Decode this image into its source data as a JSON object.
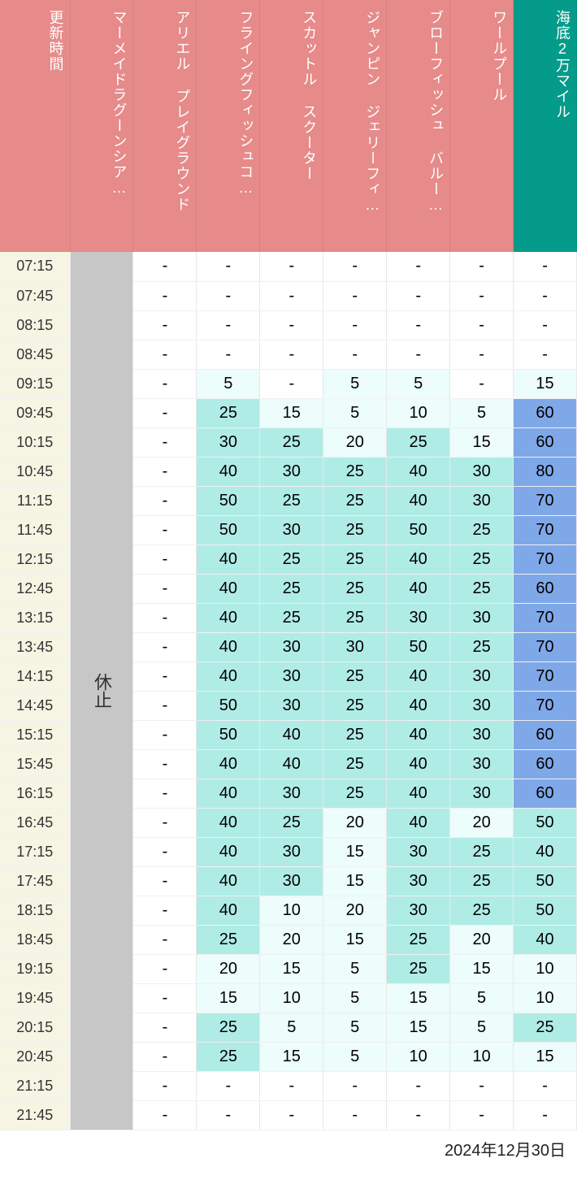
{
  "colors": {
    "head_pink": "#e68a8a",
    "head_teal": "#059b8a",
    "time_col_bg": "#f6f5e4",
    "closed_bg": "#c7c7c7",
    "tiers": {
      "none": "#ffffff",
      "t1": "#ecfdfb",
      "t2": "#b0ece6",
      "t3": "#7fa8e8",
      "alt": "#e8e8e8"
    }
  },
  "footer_date": "2024年12月30日",
  "closed_label": "休止",
  "headers": [
    {
      "key": "time",
      "label": "更新時間",
      "style": "time-head"
    },
    {
      "key": "mermaid",
      "label": "マーメイドラグーンシア…",
      "style": "col-pink"
    },
    {
      "key": "ariel",
      "label": "アリエル プレイグラウンド",
      "style": "col-pink"
    },
    {
      "key": "flying",
      "label": "フライングフィッシュコ…",
      "style": "col-pink"
    },
    {
      "key": "scuttle",
      "label": "スカットル スクーター",
      "style": "col-pink"
    },
    {
      "key": "jumpin",
      "label": "ジャンピン ジェリーフィ…",
      "style": "col-pink"
    },
    {
      "key": "blowfish",
      "label": "ブローフィッシュ バルー…",
      "style": "col-pink"
    },
    {
      "key": "whirlpool",
      "label": "ワールプール",
      "style": "col-pink"
    },
    {
      "key": "twenty",
      "label": "海底2万マイル",
      "style": "col-teal"
    }
  ],
  "times": [
    "07:15",
    "07:45",
    "08:15",
    "08:45",
    "09:15",
    "09:45",
    "10:15",
    "10:45",
    "11:15",
    "11:45",
    "12:15",
    "12:45",
    "13:15",
    "13:45",
    "14:15",
    "14:45",
    "15:15",
    "15:45",
    "16:15",
    "16:45",
    "17:15",
    "17:45",
    "18:15",
    "18:45",
    "19:15",
    "19:45",
    "20:15",
    "20:45",
    "21:15",
    "21:45"
  ],
  "data": {
    "ariel": [
      {
        "v": "-",
        "t": "none"
      },
      {
        "v": "-",
        "t": "none"
      },
      {
        "v": "-",
        "t": "none"
      },
      {
        "v": "-",
        "t": "none"
      },
      {
        "v": "-",
        "t": "none"
      },
      {
        "v": "-",
        "t": "none"
      },
      {
        "v": "-",
        "t": "none"
      },
      {
        "v": "-",
        "t": "none"
      },
      {
        "v": "-",
        "t": "none"
      },
      {
        "v": "-",
        "t": "none"
      },
      {
        "v": "-",
        "t": "none"
      },
      {
        "v": "-",
        "t": "none"
      },
      {
        "v": "-",
        "t": "none"
      },
      {
        "v": "-",
        "t": "none"
      },
      {
        "v": "-",
        "t": "none"
      },
      {
        "v": "-",
        "t": "none"
      },
      {
        "v": "-",
        "t": "none"
      },
      {
        "v": "-",
        "t": "none"
      },
      {
        "v": "-",
        "t": "none"
      },
      {
        "v": "-",
        "t": "none"
      },
      {
        "v": "-",
        "t": "none"
      },
      {
        "v": "-",
        "t": "none"
      },
      {
        "v": "-",
        "t": "none"
      },
      {
        "v": "-",
        "t": "none"
      },
      {
        "v": "-",
        "t": "none"
      },
      {
        "v": "-",
        "t": "none"
      },
      {
        "v": "-",
        "t": "none"
      },
      {
        "v": "-",
        "t": "none"
      },
      {
        "v": "-",
        "t": "none"
      },
      {
        "v": "-",
        "t": "none"
      }
    ],
    "flying": [
      {
        "v": "-",
        "t": "none"
      },
      {
        "v": "-",
        "t": "none"
      },
      {
        "v": "-",
        "t": "none"
      },
      {
        "v": "-",
        "t": "none"
      },
      {
        "v": "5",
        "t": "t1"
      },
      {
        "v": "25",
        "t": "t2"
      },
      {
        "v": "30",
        "t": "t2"
      },
      {
        "v": "40",
        "t": "t2"
      },
      {
        "v": "50",
        "t": "t2"
      },
      {
        "v": "50",
        "t": "t2"
      },
      {
        "v": "40",
        "t": "t2"
      },
      {
        "v": "40",
        "t": "t2"
      },
      {
        "v": "40",
        "t": "t2"
      },
      {
        "v": "40",
        "t": "t2"
      },
      {
        "v": "40",
        "t": "t2"
      },
      {
        "v": "50",
        "t": "t2"
      },
      {
        "v": "50",
        "t": "t2"
      },
      {
        "v": "40",
        "t": "t2"
      },
      {
        "v": "40",
        "t": "t2"
      },
      {
        "v": "40",
        "t": "t2"
      },
      {
        "v": "40",
        "t": "t2"
      },
      {
        "v": "40",
        "t": "t2"
      },
      {
        "v": "40",
        "t": "t2"
      },
      {
        "v": "25",
        "t": "t2"
      },
      {
        "v": "20",
        "t": "t1"
      },
      {
        "v": "15",
        "t": "t1"
      },
      {
        "v": "25",
        "t": "t2"
      },
      {
        "v": "25",
        "t": "t2"
      },
      {
        "v": "-",
        "t": "none"
      },
      {
        "v": "-",
        "t": "none"
      }
    ],
    "scuttle": [
      {
        "v": "-",
        "t": "none"
      },
      {
        "v": "-",
        "t": "none"
      },
      {
        "v": "-",
        "t": "none"
      },
      {
        "v": "-",
        "t": "none"
      },
      {
        "v": "-",
        "t": "none"
      },
      {
        "v": "15",
        "t": "t1"
      },
      {
        "v": "25",
        "t": "t2"
      },
      {
        "v": "30",
        "t": "t2"
      },
      {
        "v": "25",
        "t": "t2"
      },
      {
        "v": "30",
        "t": "t2"
      },
      {
        "v": "25",
        "t": "t2"
      },
      {
        "v": "25",
        "t": "t2"
      },
      {
        "v": "25",
        "t": "t2"
      },
      {
        "v": "30",
        "t": "t2"
      },
      {
        "v": "30",
        "t": "t2"
      },
      {
        "v": "30",
        "t": "t2"
      },
      {
        "v": "40",
        "t": "t2"
      },
      {
        "v": "40",
        "t": "t2"
      },
      {
        "v": "30",
        "t": "t2"
      },
      {
        "v": "25",
        "t": "t2"
      },
      {
        "v": "30",
        "t": "t2"
      },
      {
        "v": "30",
        "t": "t2"
      },
      {
        "v": "10",
        "t": "t1"
      },
      {
        "v": "20",
        "t": "t1"
      },
      {
        "v": "15",
        "t": "t1"
      },
      {
        "v": "10",
        "t": "t1"
      },
      {
        "v": "5",
        "t": "t1"
      },
      {
        "v": "15",
        "t": "t1"
      },
      {
        "v": "-",
        "t": "none"
      },
      {
        "v": "-",
        "t": "none"
      }
    ],
    "jumpin": [
      {
        "v": "-",
        "t": "none"
      },
      {
        "v": "-",
        "t": "none"
      },
      {
        "v": "-",
        "t": "none"
      },
      {
        "v": "-",
        "t": "none"
      },
      {
        "v": "5",
        "t": "t1"
      },
      {
        "v": "5",
        "t": "t1"
      },
      {
        "v": "20",
        "t": "t1"
      },
      {
        "v": "25",
        "t": "t2"
      },
      {
        "v": "25",
        "t": "t2"
      },
      {
        "v": "25",
        "t": "t2"
      },
      {
        "v": "25",
        "t": "t2"
      },
      {
        "v": "25",
        "t": "t2"
      },
      {
        "v": "25",
        "t": "t2"
      },
      {
        "v": "30",
        "t": "t2"
      },
      {
        "v": "25",
        "t": "t2"
      },
      {
        "v": "25",
        "t": "t2"
      },
      {
        "v": "25",
        "t": "t2"
      },
      {
        "v": "25",
        "t": "t2"
      },
      {
        "v": "25",
        "t": "t2"
      },
      {
        "v": "20",
        "t": "t1"
      },
      {
        "v": "15",
        "t": "t1"
      },
      {
        "v": "15",
        "t": "t1"
      },
      {
        "v": "20",
        "t": "t1"
      },
      {
        "v": "15",
        "t": "t1"
      },
      {
        "v": "5",
        "t": "t1"
      },
      {
        "v": "5",
        "t": "t1"
      },
      {
        "v": "5",
        "t": "t1"
      },
      {
        "v": "5",
        "t": "t1"
      },
      {
        "v": "-",
        "t": "none"
      },
      {
        "v": "-",
        "t": "none"
      }
    ],
    "blowfish": [
      {
        "v": "-",
        "t": "none"
      },
      {
        "v": "-",
        "t": "none"
      },
      {
        "v": "-",
        "t": "none"
      },
      {
        "v": "-",
        "t": "none"
      },
      {
        "v": "5",
        "t": "t1"
      },
      {
        "v": "10",
        "t": "t1"
      },
      {
        "v": "25",
        "t": "t2"
      },
      {
        "v": "40",
        "t": "t2"
      },
      {
        "v": "40",
        "t": "t2"
      },
      {
        "v": "50",
        "t": "t2"
      },
      {
        "v": "40",
        "t": "t2"
      },
      {
        "v": "40",
        "t": "t2"
      },
      {
        "v": "30",
        "t": "t2"
      },
      {
        "v": "50",
        "t": "t2"
      },
      {
        "v": "40",
        "t": "t2"
      },
      {
        "v": "40",
        "t": "t2"
      },
      {
        "v": "40",
        "t": "t2"
      },
      {
        "v": "40",
        "t": "t2"
      },
      {
        "v": "40",
        "t": "t2"
      },
      {
        "v": "40",
        "t": "t2"
      },
      {
        "v": "30",
        "t": "t2"
      },
      {
        "v": "30",
        "t": "t2"
      },
      {
        "v": "30",
        "t": "t2"
      },
      {
        "v": "25",
        "t": "t2"
      },
      {
        "v": "25",
        "t": "t2"
      },
      {
        "v": "15",
        "t": "t1"
      },
      {
        "v": "15",
        "t": "t1"
      },
      {
        "v": "10",
        "t": "t1"
      },
      {
        "v": "-",
        "t": "none"
      },
      {
        "v": "-",
        "t": "none"
      }
    ],
    "whirlpool": [
      {
        "v": "-",
        "t": "none"
      },
      {
        "v": "-",
        "t": "none"
      },
      {
        "v": "-",
        "t": "none"
      },
      {
        "v": "-",
        "t": "none"
      },
      {
        "v": "-",
        "t": "none"
      },
      {
        "v": "5",
        "t": "t1"
      },
      {
        "v": "15",
        "t": "t1"
      },
      {
        "v": "30",
        "t": "t2"
      },
      {
        "v": "30",
        "t": "t2"
      },
      {
        "v": "25",
        "t": "t2"
      },
      {
        "v": "25",
        "t": "t2"
      },
      {
        "v": "25",
        "t": "t2"
      },
      {
        "v": "30",
        "t": "t2"
      },
      {
        "v": "25",
        "t": "t2"
      },
      {
        "v": "30",
        "t": "t2"
      },
      {
        "v": "30",
        "t": "t2"
      },
      {
        "v": "30",
        "t": "t2"
      },
      {
        "v": "30",
        "t": "t2"
      },
      {
        "v": "30",
        "t": "t2"
      },
      {
        "v": "20",
        "t": "t1"
      },
      {
        "v": "25",
        "t": "t2"
      },
      {
        "v": "25",
        "t": "t2"
      },
      {
        "v": "25",
        "t": "t2"
      },
      {
        "v": "20",
        "t": "t1"
      },
      {
        "v": "15",
        "t": "t1"
      },
      {
        "v": "5",
        "t": "t1"
      },
      {
        "v": "5",
        "t": "t1"
      },
      {
        "v": "10",
        "t": "t1"
      },
      {
        "v": "-",
        "t": "none"
      },
      {
        "v": "-",
        "t": "none"
      }
    ],
    "twenty": [
      {
        "v": "-",
        "t": "none"
      },
      {
        "v": "-",
        "t": "none"
      },
      {
        "v": "-",
        "t": "none"
      },
      {
        "v": "-",
        "t": "none"
      },
      {
        "v": "15",
        "t": "t1"
      },
      {
        "v": "60",
        "t": "t3"
      },
      {
        "v": "60",
        "t": "t3"
      },
      {
        "v": "80",
        "t": "t3"
      },
      {
        "v": "70",
        "t": "t3"
      },
      {
        "v": "70",
        "t": "t3"
      },
      {
        "v": "70",
        "t": "t3"
      },
      {
        "v": "60",
        "t": "t3"
      },
      {
        "v": "70",
        "t": "t3"
      },
      {
        "v": "70",
        "t": "t3"
      },
      {
        "v": "70",
        "t": "t3"
      },
      {
        "v": "70",
        "t": "t3"
      },
      {
        "v": "60",
        "t": "t3"
      },
      {
        "v": "60",
        "t": "t3"
      },
      {
        "v": "60",
        "t": "t3"
      },
      {
        "v": "50",
        "t": "t2"
      },
      {
        "v": "40",
        "t": "t2"
      },
      {
        "v": "50",
        "t": "t2"
      },
      {
        "v": "50",
        "t": "t2"
      },
      {
        "v": "40",
        "t": "t2"
      },
      {
        "v": "10",
        "t": "t1"
      },
      {
        "v": "10",
        "t": "t1"
      },
      {
        "v": "25",
        "t": "t2"
      },
      {
        "v": "15",
        "t": "t1"
      },
      {
        "v": "-",
        "t": "none"
      },
      {
        "v": "-",
        "t": "none"
      }
    ]
  }
}
